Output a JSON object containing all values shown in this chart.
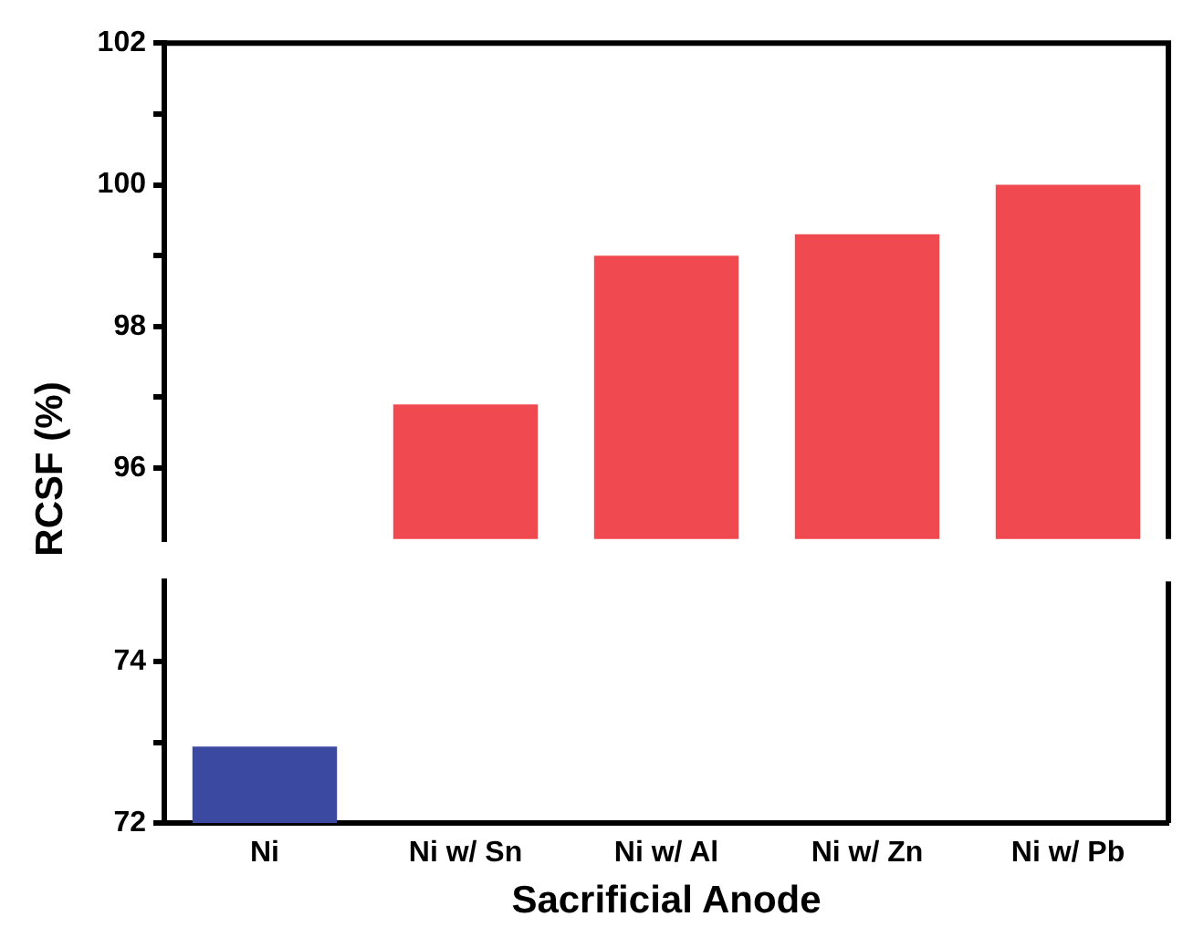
{
  "chart_data": [
    {
      "type": "bar",
      "ylabel": "RCSF (%)",
      "categories": [
        null,
        null,
        null,
        null,
        null
      ],
      "values": [
        null,
        96.9,
        99.0,
        99.3,
        100.0
      ],
      "colors": [
        "#3b4aa0",
        "#f04a50",
        "#f04a50",
        "#f04a50",
        "#f04a50"
      ],
      "ylim": [
        95,
        102
      ],
      "yticks": [
        96,
        {
          "value": 97,
          "label": null
        },
        98,
        {
          "value": 99,
          "label": null
        },
        100,
        {
          "value": 101,
          "label": null
        },
        102
      ],
      "tick_labels": "y",
      "grid": false,
      "legend": false
    },
    {
      "type": "bar",
      "xlabel": "Sacrificial Anode",
      "categories": [
        "Ni",
        "Ni w/ Sn",
        "Ni w/ Al",
        "Ni w/ Zn",
        "Ni w/ Pb"
      ],
      "values": [
        72.95,
        null,
        null,
        null,
        null
      ],
      "colors": [
        "#3b4aa0",
        "#f04a50",
        "#f04a50",
        "#f04a50",
        "#f04a50"
      ],
      "ylim": [
        72,
        75
      ],
      "yticks": [
        72,
        {
          "value": 73,
          "label": null
        },
        74
      ],
      "grid": false,
      "legend": false
    }
  ]
}
